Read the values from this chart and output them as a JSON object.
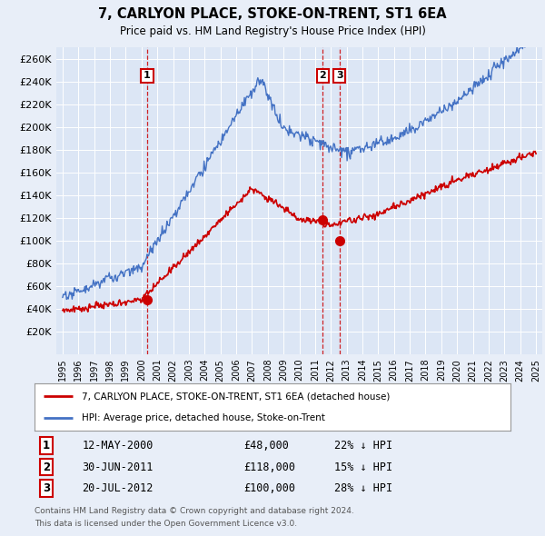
{
  "title": "7, CARLYON PLACE, STOKE-ON-TRENT, ST1 6EA",
  "subtitle": "Price paid vs. HM Land Registry's House Price Index (HPI)",
  "background_color": "#e8eef8",
  "plot_bg_color": "#dce6f5",
  "grid_color": "#ffffff",
  "ylim": [
    0,
    270000
  ],
  "yticks": [
    0,
    20000,
    40000,
    60000,
    80000,
    100000,
    120000,
    140000,
    160000,
    180000,
    200000,
    220000,
    240000,
    260000
  ],
  "sale_points": [
    {
      "label": "1",
      "date_x": 2000.36,
      "price": 48000,
      "date_str": "12-MAY-2000",
      "price_str": "£48,000",
      "pct_str": "22% ↓ HPI"
    },
    {
      "label": "2",
      "date_x": 2011.49,
      "price": 118000,
      "date_str": "30-JUN-2011",
      "price_str": "£118,000",
      "pct_str": "15% ↓ HPI"
    },
    {
      "label": "3",
      "date_x": 2012.55,
      "price": 100000,
      "date_str": "20-JUL-2012",
      "price_str": "£100,000",
      "pct_str": "28% ↓ HPI"
    }
  ],
  "legend_red_label": "7, CARLYON PLACE, STOKE-ON-TRENT, ST1 6EA (detached house)",
  "legend_blue_label": "HPI: Average price, detached house, Stoke-on-Trent",
  "footer_line1": "Contains HM Land Registry data © Crown copyright and database right 2024.",
  "footer_line2": "This data is licensed under the Open Government Licence v3.0.",
  "red_color": "#cc0000",
  "blue_color": "#4472c4",
  "xlim_left": 1994.6,
  "xlim_right": 2025.4
}
